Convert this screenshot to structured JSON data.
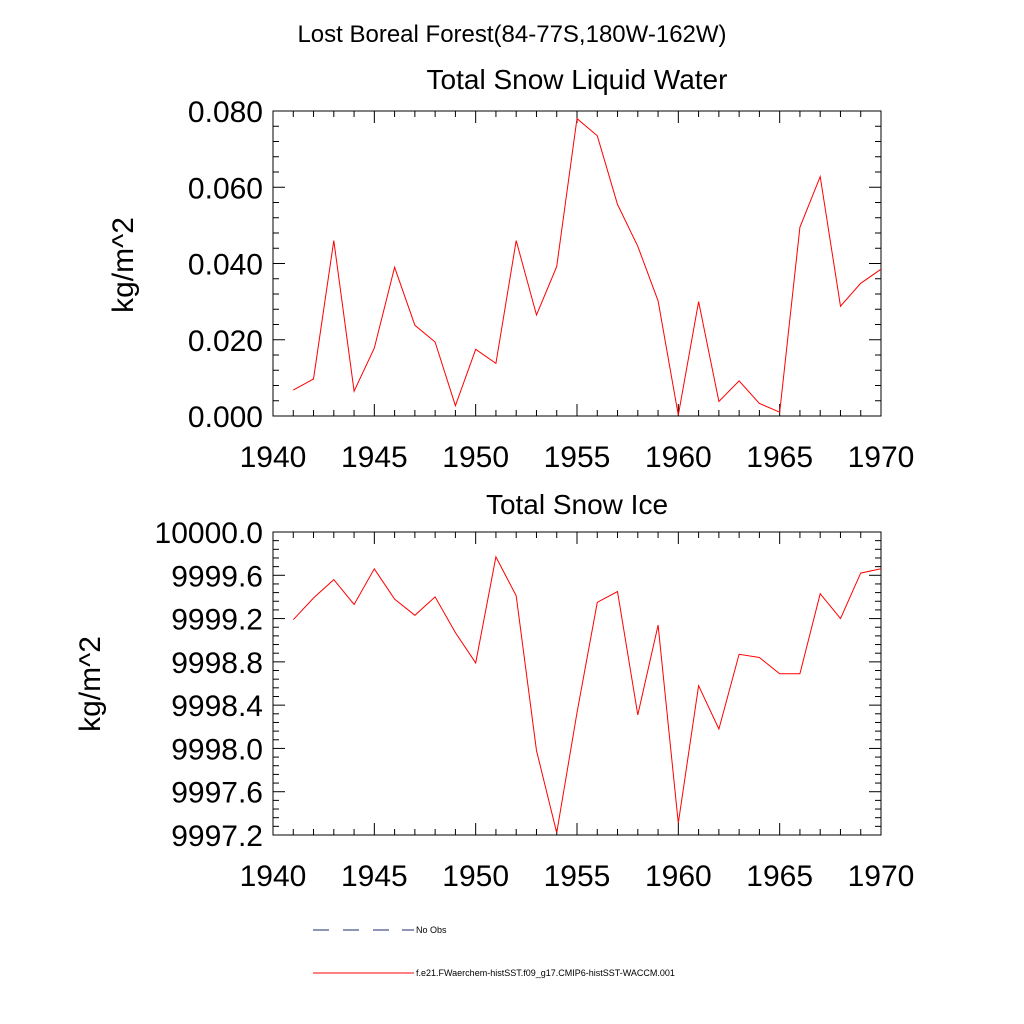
{
  "figure": {
    "suptitle": "Lost Boreal Forest(84-77S,180W-162W)"
  },
  "legend": {
    "entries": [
      {
        "label": "No Obs",
        "color": "#1c2a6b",
        "style": "dashed"
      },
      {
        "label": "f.e21.FWaerchem-histSST.f09_g17.CMIP6-histSST-WACCM.001",
        "color": "#ff0000",
        "style": "solid"
      }
    ]
  },
  "chart_data": [
    {
      "type": "line",
      "title": "Total Snow Liquid Water",
      "xlabel": "",
      "ylabel": "kg/m^2",
      "xlim": [
        1940,
        1970
      ],
      "ylim": [
        0.0,
        0.08
      ],
      "xticks": [
        "1940",
        "1945",
        "1950",
        "1955",
        "1960",
        "1965",
        "1970"
      ],
      "yticks": [
        "0.000",
        "0.020",
        "0.040",
        "0.060",
        "0.080"
      ],
      "grid": false,
      "x": [
        1941,
        1942,
        1943,
        1944,
        1945,
        1946,
        1947,
        1948,
        1949,
        1950,
        1951,
        1952,
        1953,
        1954,
        1955,
        1956,
        1957,
        1958,
        1959,
        1960,
        1961,
        1962,
        1963,
        1964,
        1965,
        1966,
        1967,
        1968,
        1969,
        1970
      ],
      "series": [
        {
          "name": "f.e21.FWaerchem-histSST.f09_g17.CMIP6-histSST-WACCM.001",
          "color": "#ff0000",
          "values": [
            0.0068,
            0.0097,
            0.046,
            0.0065,
            0.0178,
            0.039,
            0.0238,
            0.0194,
            0.0027,
            0.0175,
            0.0138,
            0.046,
            0.0265,
            0.0392,
            0.078,
            0.0735,
            0.0555,
            0.0445,
            0.0302,
            0.0002,
            0.03,
            0.0038,
            0.0092,
            0.0033,
            0.001,
            0.0495,
            0.0628,
            0.0288,
            0.0348,
            0.0385
          ]
        }
      ]
    },
    {
      "type": "line",
      "title": "Total Snow Ice",
      "xlabel": "",
      "ylabel": "kg/m^2",
      "xlim": [
        1940,
        1970
      ],
      "ylim": [
        9997.2,
        10000.0
      ],
      "xticks": [
        "1940",
        "1945",
        "1950",
        "1955",
        "1960",
        "1965",
        "1970"
      ],
      "yticks": [
        "9997.2",
        "9997.6",
        "9998.0",
        "9998.4",
        "9998.8",
        "9999.2",
        "9999.6",
        "10000.0"
      ],
      "grid": false,
      "x": [
        1941,
        1942,
        1943,
        1944,
        1945,
        1946,
        1947,
        1948,
        1949,
        1950,
        1951,
        1952,
        1953,
        1954,
        1955,
        1956,
        1957,
        1958,
        1959,
        1960,
        1961,
        1962,
        1963,
        1964,
        1965,
        1966,
        1967,
        1968,
        1969,
        1970
      ],
      "series": [
        {
          "name": "f.e21.FWaerchem-histSST.f09_g17.CMIP6-histSST-WACCM.001",
          "color": "#ff0000",
          "values": [
            9999.19,
            9999.39,
            9999.56,
            9999.33,
            9999.66,
            9999.38,
            9999.23,
            9999.4,
            9999.07,
            9998.79,
            9999.77,
            9999.41,
            9997.98,
            9997.22,
            9998.33,
            9999.35,
            9999.45,
            9998.31,
            9999.14,
            9997.31,
            9998.58,
            9998.18,
            9998.87,
            9998.84,
            9998.69,
            9998.69,
            9999.43,
            9999.2,
            9999.62,
            9999.66
          ]
        }
      ]
    }
  ]
}
